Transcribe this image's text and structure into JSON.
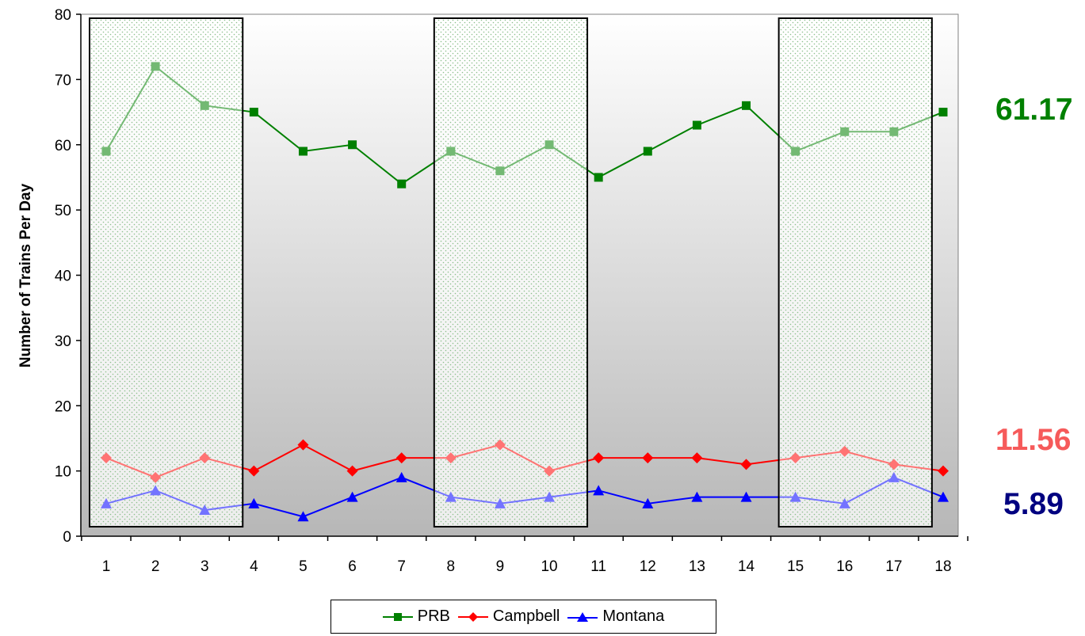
{
  "chart_data": {
    "type": "line",
    "xlabel": "",
    "ylabel": "Number of Trains Per Day",
    "ylim": [
      0,
      80
    ],
    "yticks": [
      "0",
      "10",
      "20",
      "30",
      "40",
      "50",
      "60",
      "70",
      "80"
    ],
    "categories": [
      "1",
      "2",
      "3",
      "4",
      "5",
      "6",
      "7",
      "8",
      "9",
      "10",
      "11",
      "12",
      "13",
      "14",
      "15",
      "16",
      "17",
      "18"
    ],
    "series": [
      {
        "name": "PRB",
        "color": "#008000",
        "marker": "square",
        "values": [
          59,
          72,
          66,
          65,
          59,
          60,
          54,
          59,
          56,
          60,
          55,
          59,
          63,
          66,
          59,
          62,
          62,
          65
        ]
      },
      {
        "name": "Campbell",
        "color": "#ff0000",
        "marker": "diamond",
        "values": [
          12,
          9,
          12,
          10,
          14,
          10,
          12,
          12,
          14,
          10,
          12,
          12,
          12,
          11,
          12,
          13,
          11,
          10
        ]
      },
      {
        "name": "Montana",
        "color": "#0000ff",
        "marker": "triangle",
        "values": [
          5,
          7,
          4,
          5,
          3,
          6,
          9,
          6,
          5,
          6,
          7,
          5,
          6,
          6,
          6,
          5,
          9,
          6
        ]
      }
    ],
    "shaded_ranges": [
      [
        1,
        3
      ],
      [
        8,
        10
      ],
      [
        15,
        17
      ]
    ],
    "averages": [
      {
        "series": "PRB",
        "label": "61.17",
        "color": "#008000"
      },
      {
        "series": "Campbell",
        "label": "11.56",
        "color": "#f65a5a"
      },
      {
        "series": "Montana",
        "label": "5.89",
        "color": "#000080"
      }
    ],
    "legend_position": "bottom",
    "grid": false
  }
}
